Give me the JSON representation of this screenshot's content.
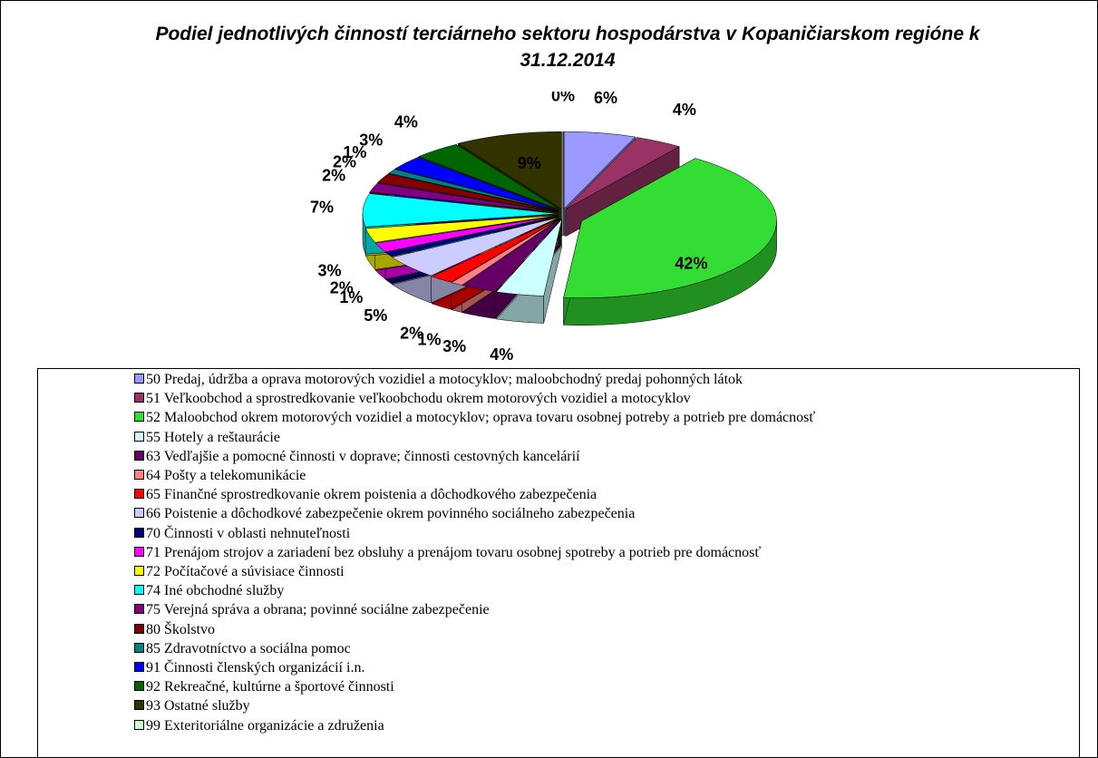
{
  "chart_data": {
    "type": "pie",
    "title": "Podiel jednotlivých činností terciárneho sektoru hospodárstva v Kopaničiarskom regióne k 31.12.2014",
    "categories": [
      "50 Predaj, údržba a oprava motorových vozidiel a motocyklov; maloobchodný predaj pohonných látok",
      "51 Veľkoobchod a sprostredkovanie veľkoobchodu okrem motorových vozidiel a motocyklov",
      "52 Maloobchod okrem motorových vozidiel a motocyklov; oprava tovaru osobnej potreby a potrieb pre domácnosť",
      "55 Hotely a reštaurácie",
      "63 Vedľajšie a pomocné činnosti v doprave; činnosti cestovných kancelárií",
      "64 Pošty a telekomunikácie",
      "65 Finančné sprostredkovanie okrem poistenia a dôchodkového zabezpečenia",
      "66 Poistenie a dôchodkové zabezpečenie okrem povinného sociálneho zabezpečenia",
      "70 Činnosti v oblasti nehnuteľnosti",
      "71 Prenájom strojov a zariadení bez obsluhy a prenájom tovaru osobnej spotreby a potrieb pre domácnosť",
      "72 Počítačové a súvisiace činnosti",
      "74 Iné obchodné služby",
      "75 Verejná správa a obrana; povinné sociálne zabezpečenie",
      "80 Školstvo",
      "85 Zdravotníctvo a sociálna pomoc",
      "91 Činnosti členských organizácií i.n.",
      "92 Rekreačné, kultúrne a športové činnosti",
      "93 Ostatné služby",
      "99 Exteritoriálne organizácie a združenia"
    ],
    "values": [
      6,
      4,
      42,
      4,
      3,
      1,
      2,
      5,
      1,
      2,
      3,
      7,
      2,
      2,
      1,
      3,
      4,
      9,
      0
    ],
    "value_labels": [
      "6%",
      "4%",
      "42%",
      "4%",
      "3%",
      "1%",
      "2%",
      "5%",
      "1%",
      "2%",
      "3%",
      "7%",
      "2%",
      "2%",
      "1%",
      "3%",
      "4%",
      "9%",
      "0%"
    ],
    "colors": [
      "#9999ff",
      "#993366",
      "#33dd33",
      "#ccffff",
      "#660066",
      "#ff8080",
      "#ff0000",
      "#ccccff",
      "#000080",
      "#ff00ff",
      "#ffff00",
      "#00ffff",
      "#800080",
      "#800000",
      "#008080",
      "#0000ff",
      "#006600",
      "#333300",
      "#ccffcc"
    ]
  }
}
